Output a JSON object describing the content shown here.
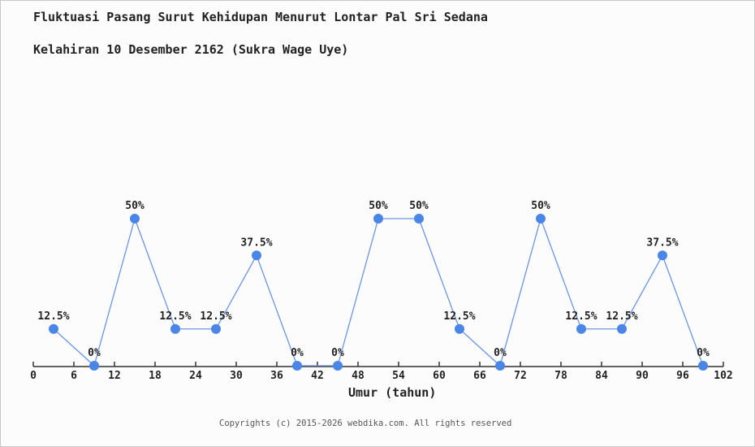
{
  "page": {
    "background_color": "#fcfcfc",
    "border_color": "#c9c9c9"
  },
  "header": {
    "title_line1": "Fluktuasi Pasang Surut Kehidupan Menurut Lontar Pal Sri Sedana",
    "title_line2": "Kelahiran 10 Desember 2162 (Sukra Wage Uye)"
  },
  "footer": {
    "copyright": "Copyrights (c) 2015-2026 webdika.com. All rights reserved"
  },
  "chart_data": {
    "type": "line",
    "title": "Fluktuasi Pasang Surut Kehidupan Menurut Lontar Pal Sri Sedana Kelahiran 10 Desember 2162 (Sukra Wage Uye)",
    "xlabel": "Umur (tahun)",
    "ylabel": "",
    "x": [
      3,
      9,
      15,
      21,
      27,
      33,
      39,
      45,
      51,
      57,
      63,
      69,
      75,
      81,
      87,
      93,
      99
    ],
    "values": [
      12.5,
      0,
      50,
      12.5,
      12.5,
      37.5,
      0,
      0,
      50,
      50,
      12.5,
      0,
      50,
      12.5,
      12.5,
      37.5,
      0
    ],
    "point_labels": [
      "12.5%",
      "0%",
      "50%",
      "12.5%",
      "12.5%",
      "37.5%",
      "0%",
      "0%",
      "50%",
      "50%",
      "12.5%",
      "0%",
      "50%",
      "12.5%",
      "12.5%",
      "37.5%",
      "0%"
    ],
    "x_ticks": [
      0,
      6,
      12,
      18,
      24,
      30,
      36,
      42,
      48,
      54,
      60,
      66,
      72,
      78,
      84,
      90,
      96,
      102
    ],
    "xlim": [
      0,
      102
    ],
    "ylim": [
      0,
      60
    ],
    "grid": false,
    "legend": false,
    "marker_color": "#4a86e8",
    "line_color": "#6b95e3",
    "axis_color": "#333333",
    "text_color": "#222222"
  }
}
